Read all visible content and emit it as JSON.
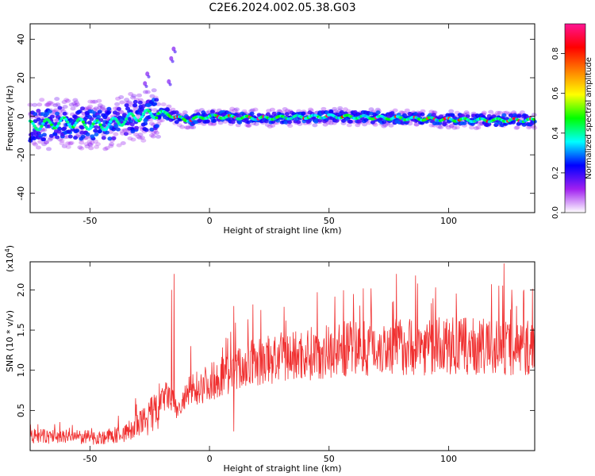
{
  "title": "C2E6.2024.002.05.38.G03",
  "chart_data": [
    {
      "type": "heatmap",
      "xlabel": "Height of straight line (km)",
      "ylabel": "Frequency (Hz)",
      "xlim": [
        -75,
        136
      ],
      "ylim": [
        -50,
        48
      ],
      "xticks": [
        -50,
        0,
        50,
        100
      ],
      "yticks": [
        -40,
        -20,
        0,
        20,
        40
      ],
      "grid": false,
      "description_of_values": "Normalized spectral amplitude concentrated near 0 Hz; broad scatter (approx. -15..+15 Hz) for heights below about -20 km, narrow band (approx. -5..+5 Hz) above.",
      "ridge": [
        {
          "x": -75,
          "y": -5
        },
        {
          "x": -60,
          "y": -3
        },
        {
          "x": -45,
          "y": -5
        },
        {
          "x": -30,
          "y": 0
        },
        {
          "x": -20,
          "y": 2
        },
        {
          "x": -10,
          "y": -2
        },
        {
          "x": 0,
          "y": 0
        },
        {
          "x": 20,
          "y": -1
        },
        {
          "x": 50,
          "y": 0
        },
        {
          "x": 80,
          "y": -1
        },
        {
          "x": 110,
          "y": -2
        },
        {
          "x": 135,
          "y": -2
        }
      ],
      "outliers": [
        {
          "x": -16,
          "y": 30
        },
        {
          "x": -15,
          "y": 35
        },
        {
          "x": -26,
          "y": 22
        },
        {
          "x": -17,
          "y": 18
        },
        {
          "x": -27,
          "y": 17
        }
      ],
      "colorbar": {
        "label": "Normalized spectral amplitude",
        "range": [
          0.0,
          0.95
        ],
        "ticks": [
          0.0,
          0.2,
          0.4,
          0.6,
          0.8
        ],
        "tick_labels": [
          "0.0",
          "0.2",
          "0.4",
          "0.6",
          "0.8"
        ],
        "colors": [
          "#ffffff",
          "#a020f0",
          "#0000ff",
          "#00ffff",
          "#00ff00",
          "#ffff00",
          "#ff8000",
          "#ff0000",
          "#ff1493"
        ]
      }
    },
    {
      "type": "line",
      "xlabel": "Height of straight line (km)",
      "ylabel": "SNR (10 * v/v)",
      "y_multiplier_label": "(x10",
      "y_multiplier_exp": "4",
      "xlim": [
        -75,
        136
      ],
      "ylim": [
        0,
        23500
      ],
      "xticks": [
        -50,
        0,
        50,
        100
      ],
      "yticks": [
        5000,
        10000,
        15000,
        20000
      ],
      "ytick_labels": [
        "0.5",
        "1.0",
        "1.5",
        "2.0"
      ],
      "grid": false,
      "color": "#f03030",
      "trend": [
        {
          "x": -75,
          "y": 1800
        },
        {
          "x": -60,
          "y": 1700
        },
        {
          "x": -45,
          "y": 1600
        },
        {
          "x": -35,
          "y": 2200
        },
        {
          "x": -28,
          "y": 3500
        },
        {
          "x": -22,
          "y": 5000
        },
        {
          "x": -18,
          "y": 7000
        },
        {
          "x": -13,
          "y": 5000
        },
        {
          "x": -8,
          "y": 7500
        },
        {
          "x": 0,
          "y": 8500
        },
        {
          "x": 10,
          "y": 10000
        },
        {
          "x": 20,
          "y": 11000
        },
        {
          "x": 40,
          "y": 12000
        },
        {
          "x": 60,
          "y": 12800
        },
        {
          "x": 80,
          "y": 13000
        },
        {
          "x": 100,
          "y": 13000
        },
        {
          "x": 120,
          "y": 12800
        },
        {
          "x": 135,
          "y": 12800
        }
      ],
      "peaks": [
        {
          "x": -15,
          "y": 22000
        },
        {
          "x": -16,
          "y": 20000
        },
        {
          "x": -8,
          "y": 13000
        },
        {
          "x": 10,
          "y": 18000
        },
        {
          "x": 18,
          "y": 18200
        },
        {
          "x": 78,
          "y": 22000
        },
        {
          "x": 86,
          "y": 21800
        },
        {
          "x": 123,
          "y": 23300
        },
        {
          "x": 10,
          "y": 2400
        }
      ]
    }
  ]
}
